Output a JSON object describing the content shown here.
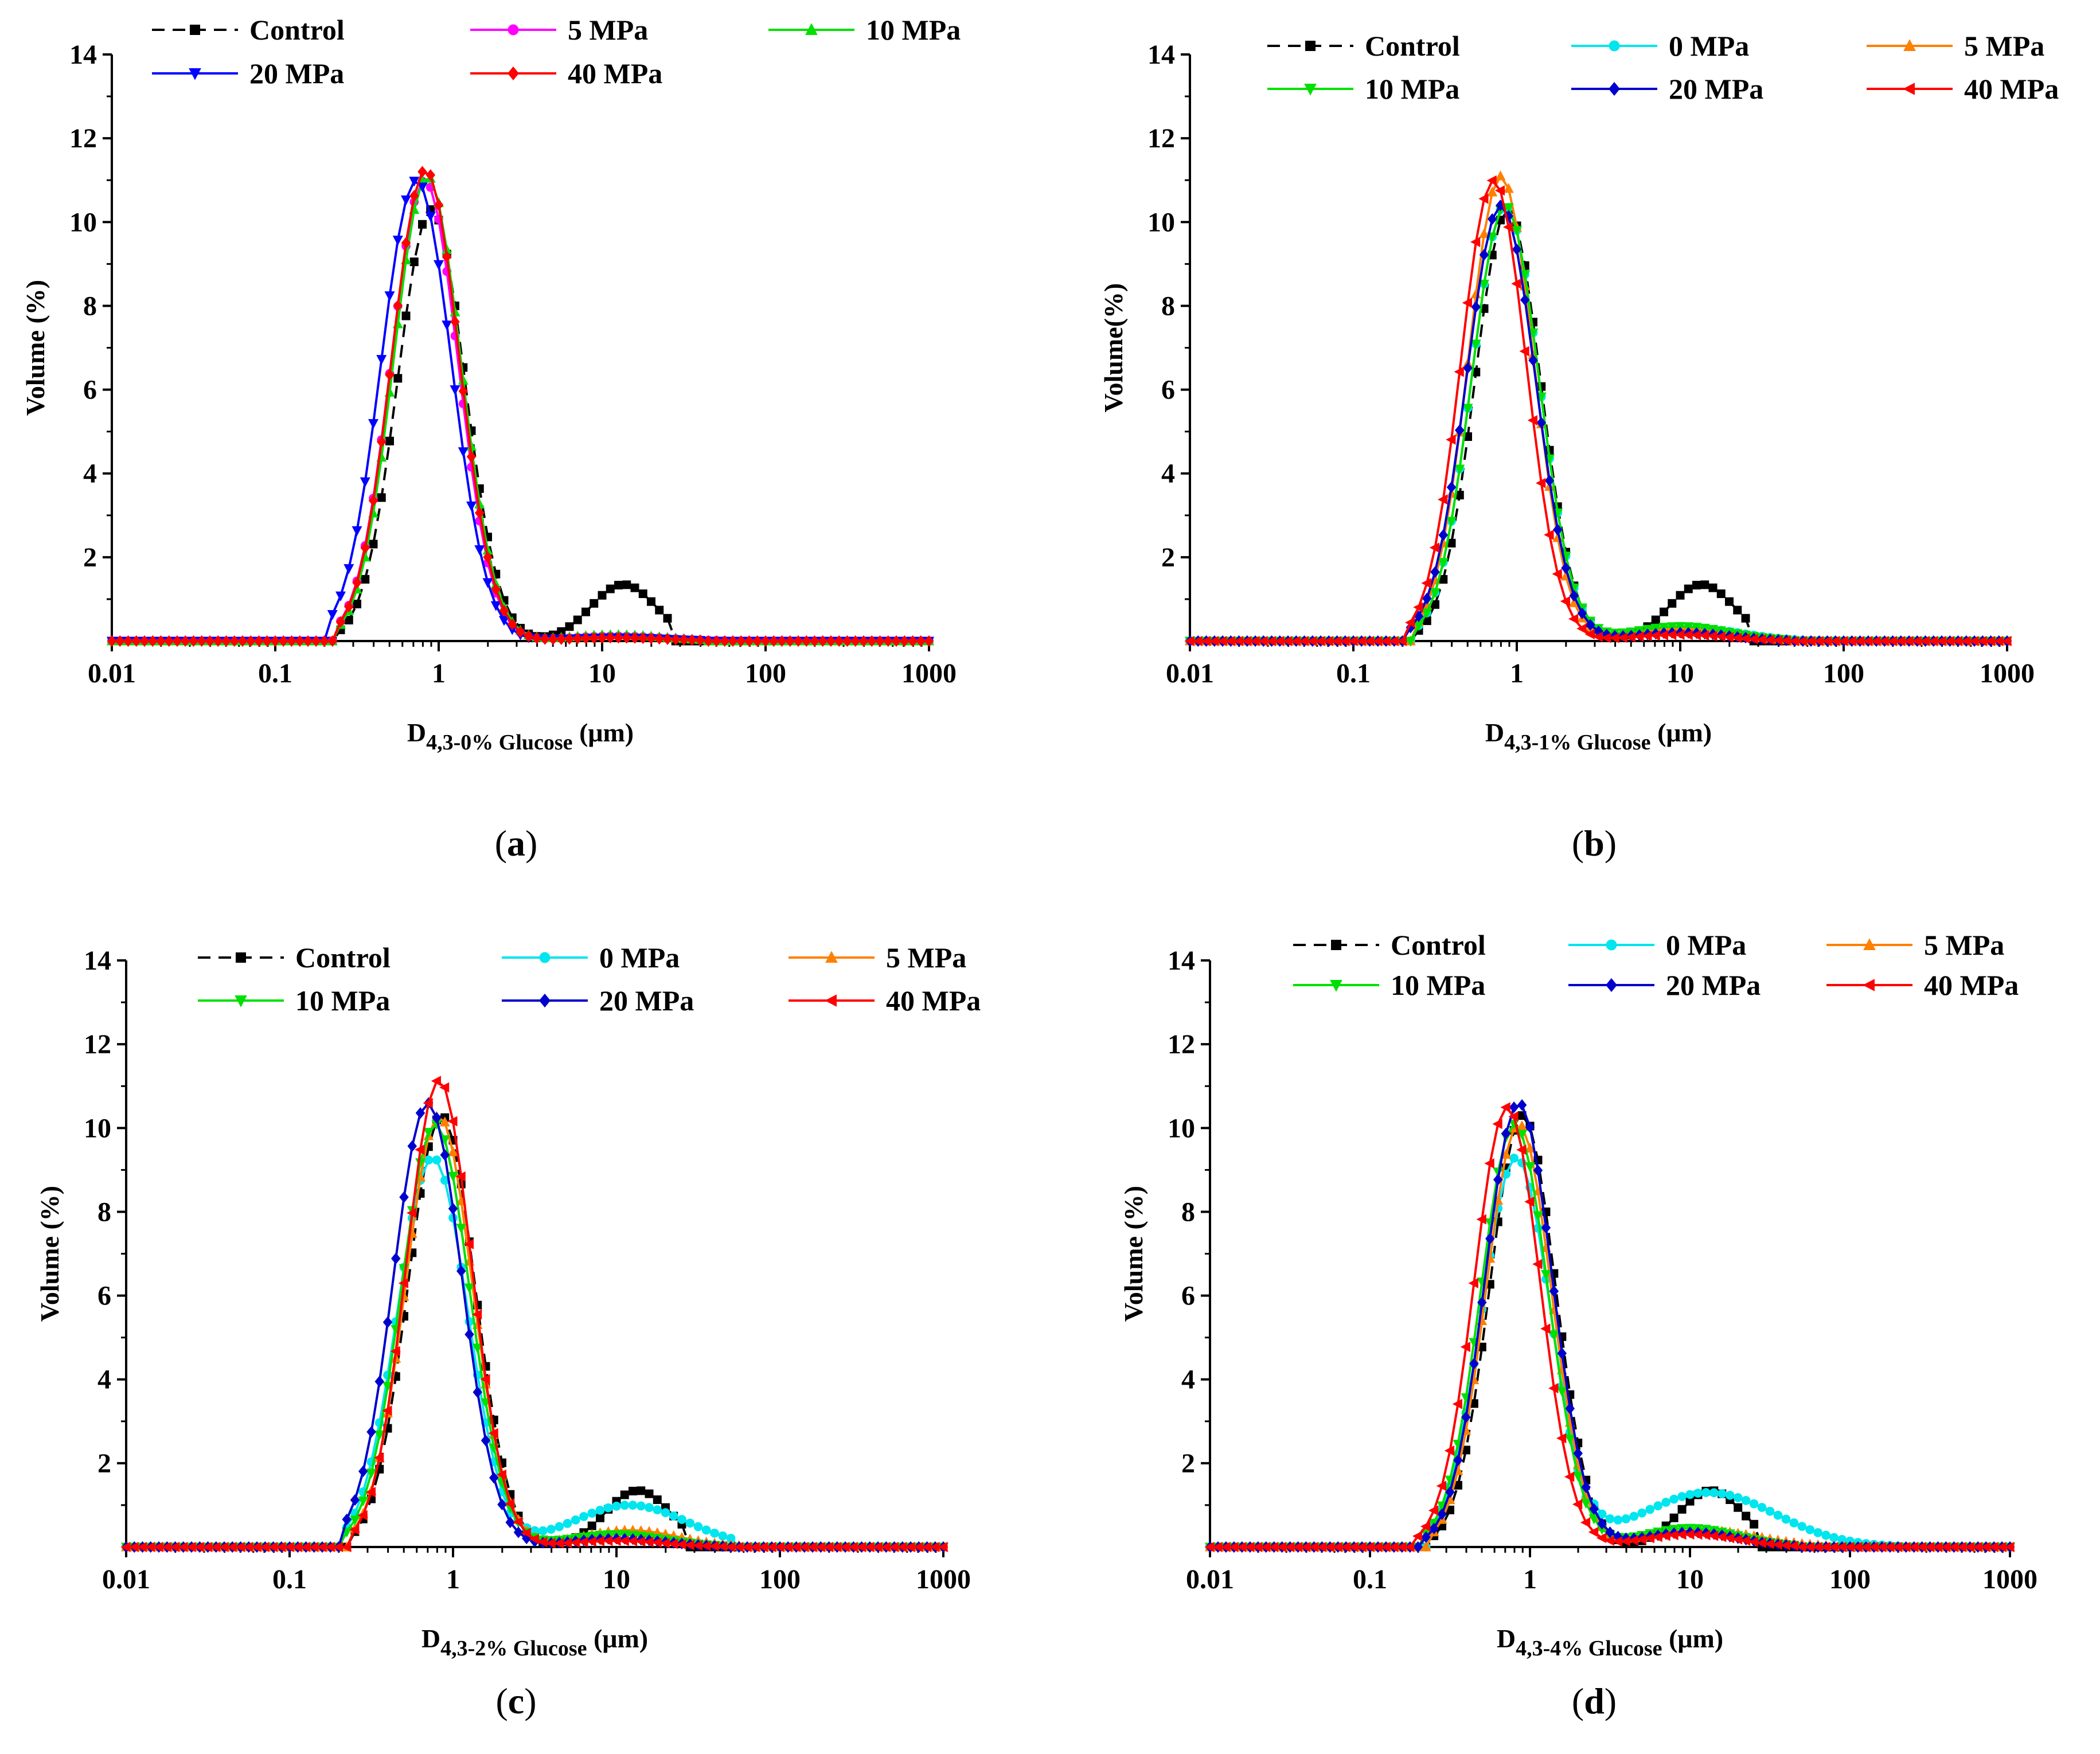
{
  "figure": {
    "panels": [
      {
        "label": "a",
        "ylabel": "Volume (%)",
        "xlabel_main": "D",
        "xlabel_sub": "4,3-0% Glucose",
        "xlabel_unit": "(μm)"
      },
      {
        "label": "b",
        "ylabel": "Volume(%)",
        "xlabel_main": "D",
        "xlabel_sub": "4,3-1% Glucose",
        "xlabel_unit": "(μm)"
      },
      {
        "label": "c",
        "ylabel": "Volume (%)",
        "xlabel_main": "D",
        "xlabel_sub": "4,3-2% Glucose",
        "xlabel_unit": "(μm)"
      },
      {
        "label": "d",
        "ylabel": "Volume (%)",
        "xlabel_main": "D",
        "xlabel_sub": "4,3-4% Glucose",
        "xlabel_unit": "(μm)"
      }
    ]
  },
  "chart_data": [
    {
      "type": "line",
      "xscale": "log",
      "xlim": [
        0.01,
        1000
      ],
      "ylim": [
        0,
        14
      ],
      "x_ticks": [
        "0.01",
        "0.1",
        "1",
        "10",
        "100",
        "1000"
      ],
      "y_ticks": [
        "2",
        "4",
        "6",
        "8",
        "10",
        "12",
        "14"
      ],
      "xlabel": "D4,3-0% Glucose (μm)",
      "ylabel": "Volume (%)",
      "legend_columns": 3,
      "legend_placement": "top",
      "series": [
        {
          "name": "Control",
          "color": "#000000",
          "marker": "square",
          "dashed": true,
          "peak_x": 0.9,
          "peak_y": 10.3,
          "sigma": 0.205,
          "min_x": 0.26,
          "max_x": 3.3,
          "second_peak": {
            "x": 13.5,
            "y": 1.35,
            "sigma": 0.2
          },
          "tail_end": 26
        },
        {
          "name": "5 MPa",
          "color": "#ff00ff",
          "marker": "circle",
          "dashed": false,
          "peak_x": 0.82,
          "peak_y": 11.0,
          "sigma": 0.205,
          "min_x": 0.26,
          "max_x": 3.5,
          "second_peak": {
            "x": 12,
            "y": 0.12,
            "sigma": 0.3
          },
          "tail_end": 60
        },
        {
          "name": "10 MPa",
          "color": "#00e000",
          "marker": "triangle-up",
          "dashed": false,
          "peak_x": 0.85,
          "peak_y": 11.1,
          "sigma": 0.205,
          "min_x": 0.26,
          "max_x": 3.5,
          "second_peak": {
            "x": 12,
            "y": 0.15,
            "sigma": 0.3
          },
          "tail_end": 40
        },
        {
          "name": "20 MPa",
          "color": "#0000ff",
          "marker": "triangle-down",
          "dashed": false,
          "peak_x": 0.73,
          "peak_y": 11.0,
          "sigma": 0.215,
          "min_x": 0.22,
          "max_x": 3.5,
          "second_peak": {
            "x": 12,
            "y": 0.08,
            "sigma": 0.3
          },
          "tail_end": 40
        },
        {
          "name": "40 MPa",
          "color": "#ff0000",
          "marker": "diamond",
          "dashed": false,
          "peak_x": 0.83,
          "peak_y": 11.25,
          "sigma": 0.205,
          "min_x": 0.26,
          "max_x": 3.5,
          "second_peak": {
            "x": 12,
            "y": 0.08,
            "sigma": 0.3
          },
          "tail_end": 40
        }
      ]
    },
    {
      "type": "line",
      "xscale": "log",
      "xlim": [
        0.01,
        1000
      ],
      "ylim": [
        0,
        14
      ],
      "x_ticks": [
        "0.01",
        "0.1",
        "1",
        "10",
        "100",
        "1000"
      ],
      "y_ticks": [
        "2",
        "4",
        "6",
        "8",
        "10",
        "12",
        "14"
      ],
      "xlabel": "D4,3-1% Glucose (μm)",
      "ylabel": "Volume(%)",
      "legend_columns": 3,
      "legend_placement": "top",
      "series": [
        {
          "name": "Control",
          "color": "#000000",
          "marker": "square",
          "dashed": true,
          "peak_x": 0.88,
          "peak_y": 10.3,
          "sigma": 0.2,
          "min_x": 0.26,
          "max_x": 3.3,
          "second_peak": {
            "x": 13.5,
            "y": 1.35,
            "sigma": 0.2
          },
          "tail_end": 26
        },
        {
          "name": "0 MPa",
          "color": "#00e5ee",
          "marker": "circle",
          "dashed": false,
          "peak_x": 0.85,
          "peak_y": 10.4,
          "sigma": 0.205,
          "min_x": 0.25,
          "max_x": 3.5,
          "second_peak": {
            "x": 12,
            "y": 0.3,
            "sigma": 0.3
          },
          "tail_end": 90
        },
        {
          "name": "5 MPa",
          "color": "#ff8000",
          "marker": "triangle-up",
          "dashed": false,
          "peak_x": 0.8,
          "peak_y": 11.1,
          "sigma": 0.2,
          "min_x": 0.25,
          "max_x": 3.5,
          "second_peak": {
            "x": 10,
            "y": 0.3,
            "sigma": 0.3
          },
          "tail_end": 50
        },
        {
          "name": "10 MPa",
          "color": "#00e000",
          "marker": "triangle-down",
          "dashed": false,
          "peak_x": 0.85,
          "peak_y": 10.4,
          "sigma": 0.205,
          "min_x": 0.25,
          "max_x": 3.5,
          "second_peak": {
            "x": 10,
            "y": 0.35,
            "sigma": 0.3
          },
          "tail_end": 50
        },
        {
          "name": "20 MPa",
          "color": "#0000cd",
          "marker": "diamond",
          "dashed": false,
          "peak_x": 0.8,
          "peak_y": 10.4,
          "sigma": 0.21,
          "min_x": 0.24,
          "max_x": 3.5,
          "second_peak": {
            "x": 10,
            "y": 0.2,
            "sigma": 0.3
          },
          "tail_end": 50
        },
        {
          "name": "40 MPa",
          "color": "#ff0000",
          "marker": "triangle-left",
          "dashed": false,
          "peak_x": 0.72,
          "peak_y": 11.0,
          "sigma": 0.2,
          "min_x": 0.23,
          "max_x": 3.5,
          "second_peak": {
            "x": 10,
            "y": 0.15,
            "sigma": 0.3
          },
          "tail_end": 50
        }
      ]
    },
    {
      "type": "line",
      "xscale": "log",
      "xlim": [
        0.01,
        1000
      ],
      "ylim": [
        0,
        14
      ],
      "x_ticks": [
        "0.01",
        "0.1",
        "1",
        "10",
        "100",
        "1000"
      ],
      "y_ticks": [
        "2",
        "4",
        "6",
        "8",
        "10",
        "12",
        "14"
      ],
      "xlabel": "D4,3-2% Glucose (μm)",
      "ylabel": "Volume (%)",
      "legend_columns": 3,
      "legend_placement": "top",
      "series": [
        {
          "name": "Control",
          "color": "#000000",
          "marker": "square",
          "dashed": true,
          "peak_x": 0.85,
          "peak_y": 10.3,
          "sigma": 0.205,
          "min_x": 0.26,
          "max_x": 3.3,
          "second_peak": {
            "x": 13.5,
            "y": 1.35,
            "sigma": 0.2
          },
          "tail_end": 26
        },
        {
          "name": "0 MPa",
          "color": "#00e5ee",
          "marker": "circle",
          "dashed": false,
          "peak_x": 0.75,
          "peak_y": 9.3,
          "sigma": 0.215,
          "min_x": 0.24,
          "max_x": 3.5,
          "second_peak": {
            "x": 12,
            "y": 1.0,
            "sigma": 0.35
          },
          "tail_end": 55
        },
        {
          "name": "5 MPa",
          "color": "#ff8000",
          "marker": "triangle-up",
          "dashed": false,
          "peak_x": 0.82,
          "peak_y": 10.3,
          "sigma": 0.205,
          "min_x": 0.25,
          "max_x": 3.5,
          "second_peak": {
            "x": 12,
            "y": 0.4,
            "sigma": 0.3
          },
          "tail_end": 60
        },
        {
          "name": "10 MPa",
          "color": "#00e000",
          "marker": "triangle-down",
          "dashed": false,
          "peak_x": 0.78,
          "peak_y": 10.1,
          "sigma": 0.21,
          "min_x": 0.24,
          "max_x": 3.5,
          "second_peak": {
            "x": 10,
            "y": 0.3,
            "sigma": 0.3
          },
          "tail_end": 50
        },
        {
          "name": "20 MPa",
          "color": "#0000cd",
          "marker": "diamond",
          "dashed": false,
          "peak_x": 0.7,
          "peak_y": 10.6,
          "sigma": 0.21,
          "min_x": 0.22,
          "max_x": 3.5,
          "second_peak": {
            "x": 10,
            "y": 0.2,
            "sigma": 0.3
          },
          "tail_end": 50
        },
        {
          "name": "40 MPa",
          "color": "#ff0000",
          "marker": "triangle-left",
          "dashed": false,
          "peak_x": 0.82,
          "peak_y": 11.15,
          "sigma": 0.2,
          "min_x": 0.25,
          "max_x": 3.5,
          "second_peak": {
            "x": 10,
            "y": 0.15,
            "sigma": 0.3
          },
          "tail_end": 50
        }
      ]
    },
    {
      "type": "line",
      "xscale": "log",
      "xlim": [
        0.01,
        1000
      ],
      "ylim": [
        0,
        14
      ],
      "x_ticks": [
        "0.01",
        "0.1",
        "1",
        "10",
        "100",
        "1000"
      ],
      "y_ticks": [
        "2",
        "4",
        "6",
        "8",
        "10",
        "12",
        "14"
      ],
      "xlabel": "D4,3-4% Glucose (μm)",
      "ylabel": "Volume (%)",
      "legend_columns": 3,
      "legend_placement": "top",
      "series": [
        {
          "name": "Control",
          "color": "#000000",
          "marker": "square",
          "dashed": true,
          "peak_x": 0.9,
          "peak_y": 10.3,
          "sigma": 0.205,
          "min_x": 0.26,
          "max_x": 3.3,
          "second_peak": {
            "x": 13.5,
            "y": 1.35,
            "sigma": 0.2
          },
          "tail_end": 26
        },
        {
          "name": "0 MPa",
          "color": "#00e5ee",
          "marker": "circle",
          "dashed": false,
          "peak_x": 0.82,
          "peak_y": 9.3,
          "sigma": 0.215,
          "min_x": 0.25,
          "max_x": 3.5,
          "second_peak": {
            "x": 13,
            "y": 1.3,
            "sigma": 0.42
          },
          "tail_end": 220
        },
        {
          "name": "5 MPa",
          "color": "#ff8000",
          "marker": "triangle-up",
          "dashed": false,
          "peak_x": 0.85,
          "peak_y": 10.1,
          "sigma": 0.205,
          "min_x": 0.25,
          "max_x": 3.5,
          "second_peak": {
            "x": 12,
            "y": 0.4,
            "sigma": 0.35
          },
          "tail_end": 300
        },
        {
          "name": "10 MPa",
          "color": "#00e000",
          "marker": "triangle-down",
          "dashed": false,
          "peak_x": 0.8,
          "peak_y": 10.1,
          "sigma": 0.21,
          "min_x": 0.24,
          "max_x": 3.5,
          "second_peak": {
            "x": 10,
            "y": 0.45,
            "sigma": 0.3
          },
          "tail_end": 50
        },
        {
          "name": "20 MPa",
          "color": "#0000cd",
          "marker": "diamond",
          "dashed": false,
          "peak_x": 0.85,
          "peak_y": 10.6,
          "sigma": 0.21,
          "min_x": 0.24,
          "max_x": 3.5,
          "second_peak": {
            "x": 10,
            "y": 0.35,
            "sigma": 0.3
          },
          "tail_end": 50
        },
        {
          "name": "40 MPa",
          "color": "#ff0000",
          "marker": "triangle-left",
          "dashed": false,
          "peak_x": 0.72,
          "peak_y": 10.5,
          "sigma": 0.205,
          "min_x": 0.21,
          "max_x": 3.5,
          "second_peak": {
            "x": 10,
            "y": 0.3,
            "sigma": 0.3
          },
          "tail_end": 50
        }
      ]
    }
  ]
}
